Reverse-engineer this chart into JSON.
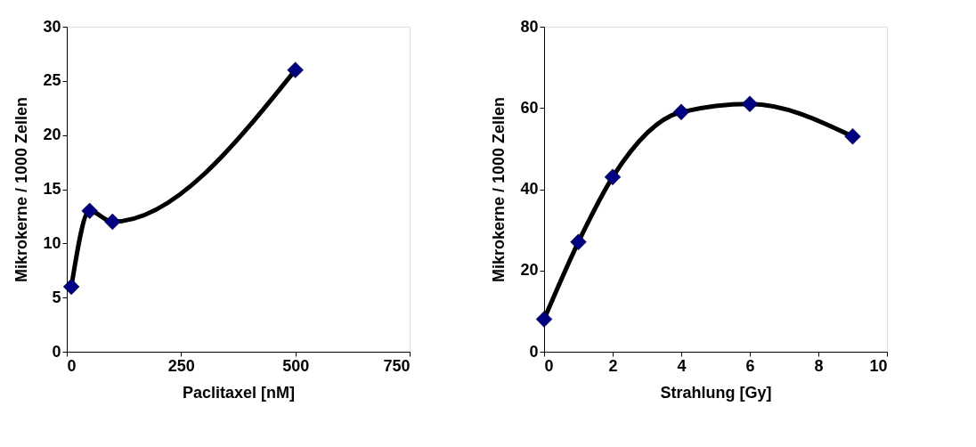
{
  "chart_data": [
    {
      "type": "line",
      "xlabel": "Paclitaxel [nM]",
      "ylabel": "Mikrokerne / 1000 Zellen",
      "x": [
        10,
        50,
        100,
        500
      ],
      "series": [
        {
          "color": "#000080",
          "values": [
            6,
            13,
            12,
            26
          ]
        }
      ],
      "xlim": [
        0,
        750
      ],
      "xticks": [
        0,
        250,
        500,
        750
      ],
      "ylim": [
        0,
        30
      ],
      "yticks": [
        0,
        5,
        10,
        15,
        20,
        25,
        30
      ],
      "grid": false,
      "marker": "diamond",
      "line_style": "solid"
    },
    {
      "type": "line",
      "xlabel": "Strahlung [Gy]",
      "ylabel": "Mikrokerne / 1000 Zellen",
      "x": [
        0,
        1,
        2,
        4,
        6,
        9
      ],
      "series": [
        {
          "color": "#000080",
          "values": [
            8,
            27,
            43,
            59,
            61,
            53
          ]
        }
      ],
      "xlim": [
        0,
        10
      ],
      "xticks": [
        0,
        2,
        4,
        6,
        8,
        10
      ],
      "ylim": [
        0,
        80
      ],
      "yticks": [
        0,
        20,
        40,
        60,
        80
      ],
      "grid": false,
      "marker": "diamond",
      "line_style": "solid"
    }
  ]
}
